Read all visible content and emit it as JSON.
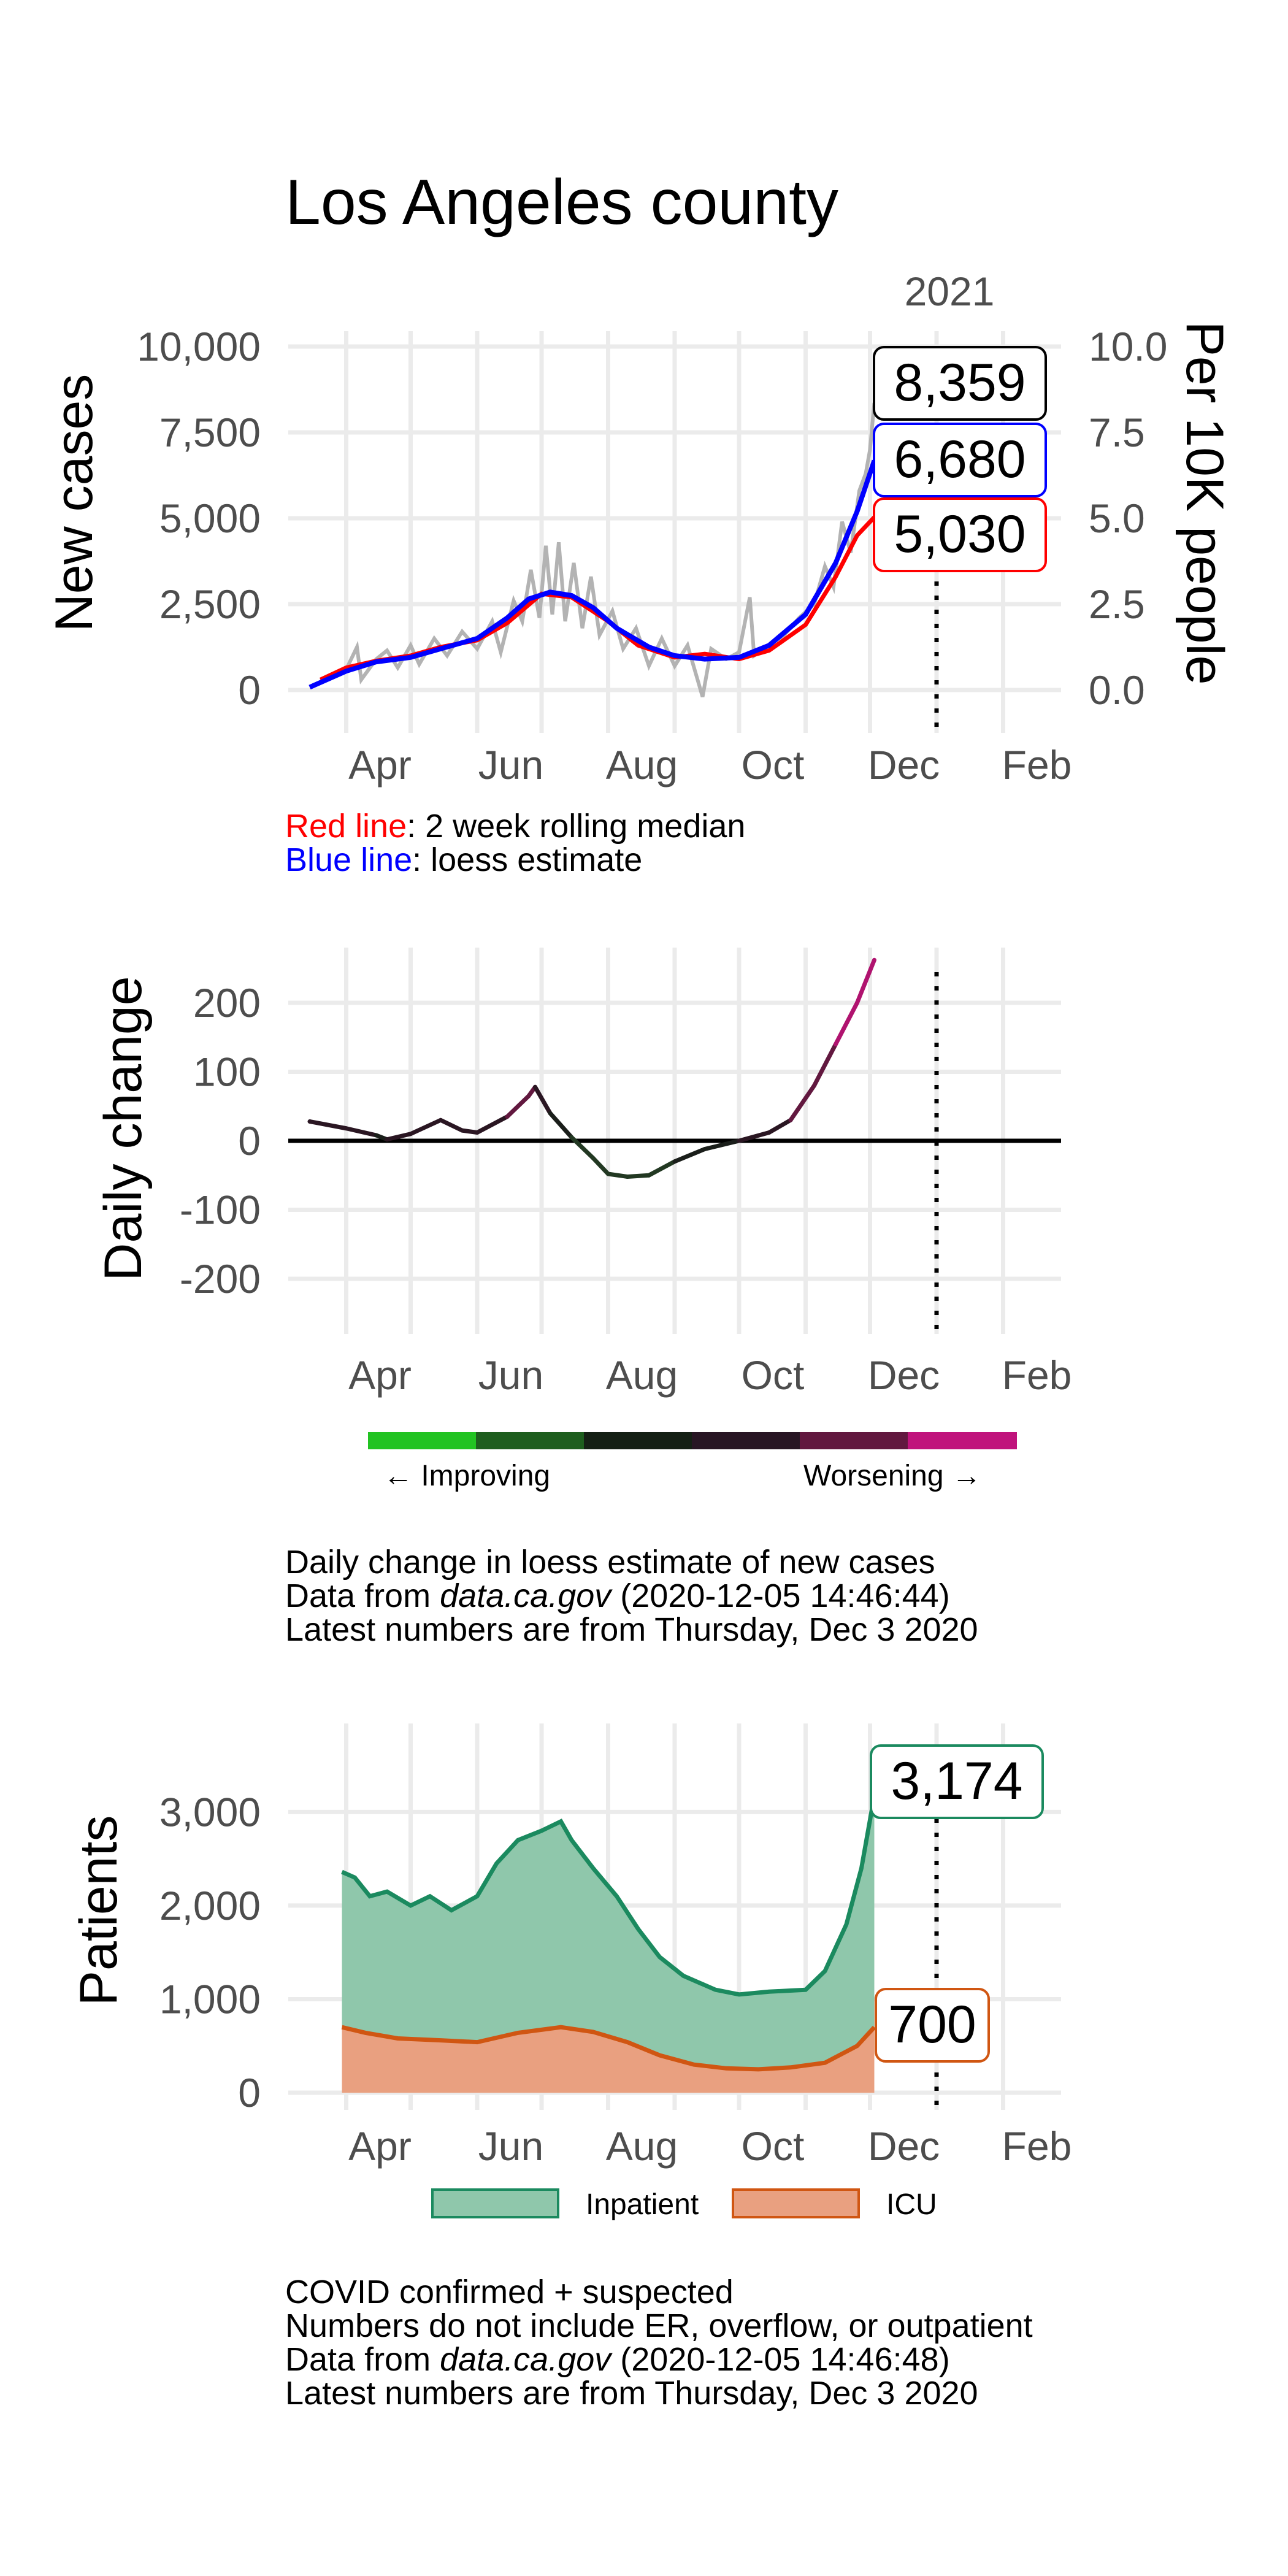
{
  "title": "Los Angeles county",
  "months": [
    "Apr",
    "Jun",
    "Aug",
    "Oct",
    "Dec",
    "Feb"
  ],
  "year_label": "2021",
  "colors": {
    "raw": "#b3b3b3",
    "median": "#ff0000",
    "loess": "#0000ff",
    "inpatient_line": "#1b8a5f",
    "inpatient_fill": "#8fc7ab",
    "icu_line": "#d05612",
    "icu_fill": "#e9a080"
  },
  "chart_data": [
    {
      "type": "line",
      "name": "new-cases",
      "ylabel": "New cases",
      "y2label": "Per 10K people",
      "ylim": [
        0,
        10000
      ],
      "yticks": [
        "0",
        "2,500",
        "5,000",
        "7,500",
        "10,000"
      ],
      "y2ticks": [
        "0.0",
        "2.5",
        "5.0",
        "7.5",
        "10.0"
      ],
      "xlim": [
        "2020-03-05",
        "2021-02-28"
      ],
      "vline_date": "2021-01-01",
      "labels": {
        "raw": "8,359",
        "loess": "6,680",
        "median": "5,030"
      },
      "series": [
        {
          "name": "raw",
          "points": [
            [
              "2020-03-15",
              80
            ],
            [
              "2020-03-25",
              350
            ],
            [
              "2020-04-01",
              600
            ],
            [
              "2020-04-06",
              1250
            ],
            [
              "2020-04-08",
              300
            ],
            [
              "2020-04-15",
              900
            ],
            [
              "2020-04-20",
              1150
            ],
            [
              "2020-04-25",
              650
            ],
            [
              "2020-05-01",
              1300
            ],
            [
              "2020-05-05",
              750
            ],
            [
              "2020-05-12",
              1500
            ],
            [
              "2020-05-18",
              1000
            ],
            [
              "2020-05-25",
              1700
            ],
            [
              "2020-06-01",
              1200
            ],
            [
              "2020-06-08",
              2000
            ],
            [
              "2020-06-12",
              1100
            ],
            [
              "2020-06-18",
              2600
            ],
            [
              "2020-06-22",
              2000
            ],
            [
              "2020-06-26",
              3500
            ],
            [
              "2020-06-30",
              2100
            ],
            [
              "2020-07-03",
              4200
            ],
            [
              "2020-07-06",
              2200
            ],
            [
              "2020-07-09",
              4300
            ],
            [
              "2020-07-12",
              2000
            ],
            [
              "2020-07-16",
              3700
            ],
            [
              "2020-07-20",
              1800
            ],
            [
              "2020-07-24",
              3300
            ],
            [
              "2020-07-28",
              1600
            ],
            [
              "2020-08-03",
              2300
            ],
            [
              "2020-08-08",
              1200
            ],
            [
              "2020-08-14",
              1800
            ],
            [
              "2020-08-20",
              700
            ],
            [
              "2020-08-26",
              1500
            ],
            [
              "2020-09-01",
              700
            ],
            [
              "2020-09-07",
              1300
            ],
            [
              "2020-09-14",
              -200
            ],
            [
              "2020-09-18",
              1200
            ],
            [
              "2020-09-25",
              900
            ],
            [
              "2020-10-01",
              1100
            ],
            [
              "2020-10-06",
              2700
            ],
            [
              "2020-10-08",
              1000
            ],
            [
              "2020-10-15",
              1300
            ],
            [
              "2020-10-22",
              1600
            ],
            [
              "2020-10-29",
              2100
            ],
            [
              "2020-11-05",
              2500
            ],
            [
              "2020-11-10",
              3600
            ],
            [
              "2020-11-14",
              3000
            ],
            [
              "2020-11-18",
              4900
            ],
            [
              "2020-11-22",
              4000
            ],
            [
              "2020-11-26",
              5800
            ],
            [
              "2020-11-29",
              6300
            ],
            [
              "2020-12-01",
              7000
            ],
            [
              "2020-12-03",
              8359
            ]
          ]
        },
        {
          "name": "median",
          "points": [
            [
              "2020-03-20",
              300
            ],
            [
              "2020-04-01",
              650
            ],
            [
              "2020-04-15",
              850
            ],
            [
              "2020-05-01",
              1000
            ],
            [
              "2020-05-15",
              1250
            ],
            [
              "2020-06-01",
              1450
            ],
            [
              "2020-06-15",
              1950
            ],
            [
              "2020-07-01",
              2800
            ],
            [
              "2020-07-15",
              2700
            ],
            [
              "2020-08-01",
              2000
            ],
            [
              "2020-08-15",
              1300
            ],
            [
              "2020-09-01",
              950
            ],
            [
              "2020-09-15",
              1050
            ],
            [
              "2020-10-01",
              900
            ],
            [
              "2020-10-15",
              1150
            ],
            [
              "2020-11-01",
              1900
            ],
            [
              "2020-11-15",
              3300
            ],
            [
              "2020-11-25",
              4500
            ],
            [
              "2020-12-03",
              5030
            ]
          ]
        },
        {
          "name": "loess",
          "points": [
            [
              "2020-03-15",
              80
            ],
            [
              "2020-04-01",
              550
            ],
            [
              "2020-04-15",
              820
            ],
            [
              "2020-05-01",
              950
            ],
            [
              "2020-05-15",
              1200
            ],
            [
              "2020-06-01",
              1500
            ],
            [
              "2020-06-15",
              2100
            ],
            [
              "2020-06-25",
              2650
            ],
            [
              "2020-07-05",
              2850
            ],
            [
              "2020-07-15",
              2750
            ],
            [
              "2020-07-25",
              2400
            ],
            [
              "2020-08-05",
              1800
            ],
            [
              "2020-08-20",
              1250
            ],
            [
              "2020-09-01",
              1000
            ],
            [
              "2020-09-15",
              900
            ],
            [
              "2020-10-01",
              950
            ],
            [
              "2020-10-15",
              1300
            ],
            [
              "2020-11-01",
              2200
            ],
            [
              "2020-11-15",
              3700
            ],
            [
              "2020-11-25",
              5200
            ],
            [
              "2020-12-03",
              6680
            ]
          ]
        }
      ]
    },
    {
      "type": "line",
      "name": "daily-change",
      "ylabel": "Daily change",
      "ylim": [
        -280,
        280
      ],
      "yticks": [
        "-200",
        "-100",
        "0",
        "100",
        "200"
      ],
      "xlim": [
        "2020-03-05",
        "2021-02-28"
      ],
      "vline_date": "2021-01-01",
      "points": [
        [
          "2020-03-15",
          28
        ],
        [
          "2020-04-01",
          18
        ],
        [
          "2020-04-15",
          8
        ],
        [
          "2020-04-20",
          2
        ],
        [
          "2020-05-01",
          10
        ],
        [
          "2020-05-15",
          30
        ],
        [
          "2020-05-25",
          15
        ],
        [
          "2020-06-01",
          12
        ],
        [
          "2020-06-15",
          35
        ],
        [
          "2020-06-25",
          65
        ],
        [
          "2020-06-28",
          78
        ],
        [
          "2020-07-05",
          40
        ],
        [
          "2020-07-15",
          5
        ],
        [
          "2020-07-25",
          -25
        ],
        [
          "2020-08-01",
          -48
        ],
        [
          "2020-08-10",
          -52
        ],
        [
          "2020-08-20",
          -50
        ],
        [
          "2020-09-01",
          -30
        ],
        [
          "2020-09-15",
          -12
        ],
        [
          "2020-10-01",
          0
        ],
        [
          "2020-10-15",
          12
        ],
        [
          "2020-10-25",
          30
        ],
        [
          "2020-11-05",
          80
        ],
        [
          "2020-11-15",
          140
        ],
        [
          "2020-11-25",
          200
        ],
        [
          "2020-12-03",
          262
        ]
      ]
    },
    {
      "type": "area",
      "name": "patients",
      "ylabel": "Patients",
      "ylim": [
        0,
        3750
      ],
      "yticks": [
        "0",
        "1,000",
        "2,000",
        "3,000"
      ],
      "xlim": [
        "2020-03-05",
        "2021-02-28"
      ],
      "vline_date": "2021-01-01",
      "legend": [
        "Inpatient",
        "ICU"
      ],
      "labels": {
        "inpatient": "3,174",
        "icu": "700"
      },
      "series": [
        {
          "name": "Inpatient",
          "points": [
            [
              "2020-03-30",
              2360
            ],
            [
              "2020-04-05",
              2300
            ],
            [
              "2020-04-12",
              2100
            ],
            [
              "2020-04-20",
              2150
            ],
            [
              "2020-05-01",
              2000
            ],
            [
              "2020-05-10",
              2100
            ],
            [
              "2020-05-20",
              1950
            ],
            [
              "2020-06-01",
              2100
            ],
            [
              "2020-06-10",
              2450
            ],
            [
              "2020-06-20",
              2700
            ],
            [
              "2020-07-01",
              2800
            ],
            [
              "2020-07-10",
              2900
            ],
            [
              "2020-07-15",
              2700
            ],
            [
              "2020-07-25",
              2400
            ],
            [
              "2020-08-05",
              2100
            ],
            [
              "2020-08-15",
              1750
            ],
            [
              "2020-08-25",
              1450
            ],
            [
              "2020-09-05",
              1250
            ],
            [
              "2020-09-20",
              1100
            ],
            [
              "2020-10-01",
              1050
            ],
            [
              "2020-10-15",
              1080
            ],
            [
              "2020-11-01",
              1100
            ],
            [
              "2020-11-10",
              1300
            ],
            [
              "2020-11-20",
              1800
            ],
            [
              "2020-11-27",
              2400
            ],
            [
              "2020-12-03",
              3174
            ]
          ]
        },
        {
          "name": "ICU",
          "points": [
            [
              "2020-03-30",
              700
            ],
            [
              "2020-04-10",
              640
            ],
            [
              "2020-04-25",
              580
            ],
            [
              "2020-05-15",
              560
            ],
            [
              "2020-06-01",
              540
            ],
            [
              "2020-06-20",
              640
            ],
            [
              "2020-07-10",
              700
            ],
            [
              "2020-07-25",
              650
            ],
            [
              "2020-08-10",
              540
            ],
            [
              "2020-08-25",
              400
            ],
            [
              "2020-09-10",
              300
            ],
            [
              "2020-09-25",
              260
            ],
            [
              "2020-10-10",
              250
            ],
            [
              "2020-10-25",
              270
            ],
            [
              "2020-11-10",
              320
            ],
            [
              "2020-11-25",
              500
            ],
            [
              "2020-12-03",
              700
            ]
          ]
        }
      ]
    }
  ],
  "captions": {
    "red_line_label": "Red line",
    "red_line_text": ": 2 week rolling median",
    "blue_line_label": "Blue line",
    "blue_line_text": ": loess estimate",
    "improving": "← Improving",
    "worsening": "Worsening →",
    "change_1": "Daily change in loess estimate of new cases",
    "change_2_a": "Data from ",
    "change_2_b": "data.ca.gov",
    "change_2_c": " (2020-12-05 14:46:44)",
    "change_3": "Latest numbers are from Thursday, Dec 3 2020",
    "hosp_1": "COVID confirmed + suspected",
    "hosp_2": "Numbers do not include ER, overflow, or outpatient",
    "hosp_3_a": "Data from ",
    "hosp_3_b": "data.ca.gov",
    "hosp_3_c": " (2020-12-05 14:46:48)",
    "hosp_4": "Latest numbers are from Thursday, Dec 3 2020"
  },
  "gradient_colors": [
    "#22c322",
    "#1e5e1e",
    "#152015",
    "#281624",
    "#62183f",
    "#c0137c"
  ]
}
